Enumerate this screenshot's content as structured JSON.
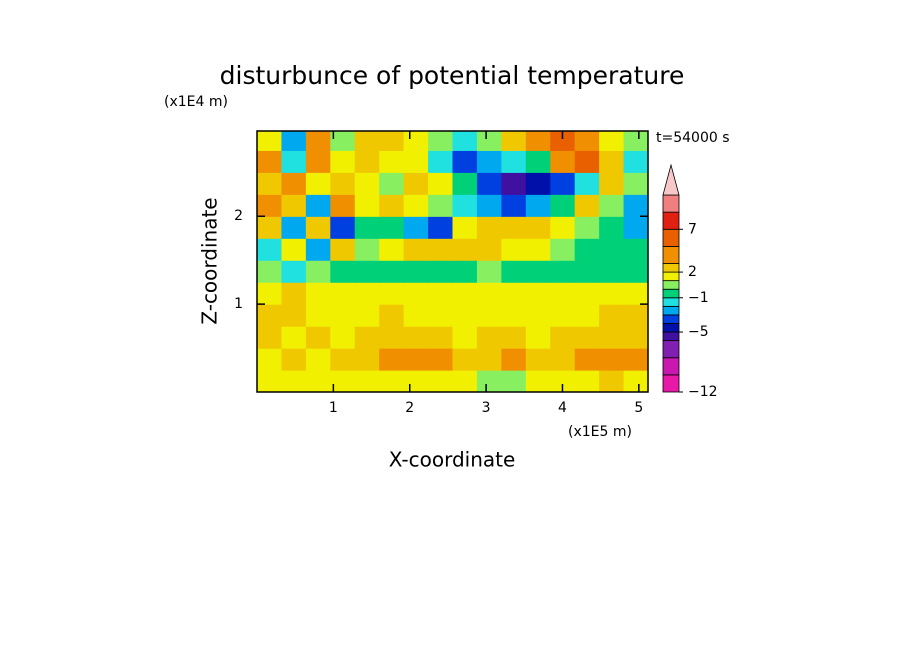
{
  "chart_data": {
    "type": "contour",
    "title": "disturbunce of potential temperature",
    "y_unit": "(x1E4 m)",
    "x_unit": "(x1E5 m)",
    "annotation": "t=54000 s",
    "x_label": "X-coordinate",
    "y_label": "Z-coordinate",
    "xlim": [
      0,
      5.12
    ],
    "ylim": [
      0,
      2.97
    ],
    "xticks": [
      1,
      2,
      3,
      4,
      5
    ],
    "yticks": [
      1,
      2
    ],
    "x": [
      0.16,
      0.48,
      0.8,
      1.12,
      1.44,
      1.76,
      2.08,
      2.4,
      2.72,
      3.04,
      3.36,
      3.68,
      4.0,
      4.32,
      4.64,
      4.96
    ],
    "y": [
      0.125,
      0.375,
      0.625,
      0.875,
      1.125,
      1.375,
      1.625,
      1.875,
      2.125,
      2.375,
      2.625,
      2.875
    ],
    "z": [
      [
        1.5,
        1.5,
        1.5,
        1.5,
        1.5,
        1.5,
        1.5,
        1.5,
        1.5,
        0.5,
        0.5,
        1.5,
        1.5,
        1.5,
        2.5,
        1.5
      ],
      [
        1.5,
        2.5,
        1.5,
        2.5,
        2.5,
        4,
        4,
        3,
        2.5,
        2.5,
        3,
        2.5,
        2.5,
        3,
        4,
        4
      ],
      [
        2.5,
        1.5,
        2.5,
        1.5,
        2.5,
        2.5,
        2.5,
        2.5,
        1.5,
        2.5,
        2.5,
        1.5,
        2.5,
        2.5,
        2.5,
        2.5
      ],
      [
        2.5,
        2.5,
        1.5,
        1.5,
        1.5,
        2.5,
        1.5,
        1.5,
        1.5,
        1.5,
        1.5,
        1.5,
        1.5,
        1.5,
        2.5,
        2.5
      ],
      [
        1.5,
        2.5,
        1.5,
        1.5,
        1.5,
        1.5,
        1.5,
        1.5,
        1.5,
        1.5,
        1.5,
        1.5,
        1.5,
        1.5,
        1.5,
        1.5
      ],
      [
        0.5,
        -1.5,
        0.5,
        -0.5,
        -0.5,
        -0.5,
        -0.5,
        -0.5,
        -0.5,
        0.5,
        -0.5,
        -0.5,
        -0.5,
        -0.5,
        -0.5,
        -0.5
      ],
      [
        -1.5,
        1.5,
        -3,
        2.5,
        0.5,
        1.5,
        2.5,
        2.5,
        2.5,
        2.5,
        1.5,
        1.5,
        0.5,
        -0.5,
        -0.5,
        -0.5
      ],
      [
        2.5,
        -3,
        2.5,
        -4,
        -0.5,
        -0.5,
        -3,
        -4,
        1.5,
        2.5,
        2.5,
        2.5,
        1.5,
        0.5,
        -0.5,
        -3
      ],
      [
        4,
        2.5,
        -3,
        4,
        1.5,
        2.5,
        1.5,
        0.5,
        -1.5,
        -3,
        -4,
        -3,
        -0.5,
        2.5,
        0.5,
        -3
      ],
      [
        2.5,
        4,
        1.5,
        2.5,
        1.5,
        0.5,
        2.5,
        1.5,
        -0.5,
        -4,
        -6,
        -5,
        -4,
        -1.5,
        2.5,
        0.5
      ],
      [
        4,
        -1.5,
        4,
        1.5,
        2.5,
        1.5,
        1.5,
        -1.5,
        -4,
        -3,
        -1.5,
        -0.5,
        4,
        6,
        2.5,
        -1.5
      ],
      [
        1.5,
        -3,
        4,
        0.5,
        2.5,
        2.5,
        1.5,
        0.5,
        -1.5,
        0.5,
        2.5,
        4,
        6,
        4,
        1.5,
        0.5
      ]
    ],
    "colorbar": {
      "levels": [
        -12,
        -10,
        -8,
        -6,
        -5,
        -4,
        -3,
        -2,
        -1,
        0,
        1,
        2,
        3,
        5,
        7,
        9,
        11
      ],
      "colors": [
        "#e818a8",
        "#c818b0",
        "#8020b0",
        "#4010a0",
        "#0010a8",
        "#0040e0",
        "#00a8f0",
        "#20e0e0",
        "#00d078",
        "#88f060",
        "#f0f000",
        "#f0c800",
        "#f09000",
        "#e86000",
        "#e02010",
        "#f08080"
      ],
      "extend_color": "#f8c8c8",
      "ticks": [
        {
          "value": -12,
          "label": "−12"
        },
        {
          "value": -5,
          "label": "−5"
        },
        {
          "value": -1,
          "label": "−1"
        },
        2,
        7
      ]
    }
  }
}
